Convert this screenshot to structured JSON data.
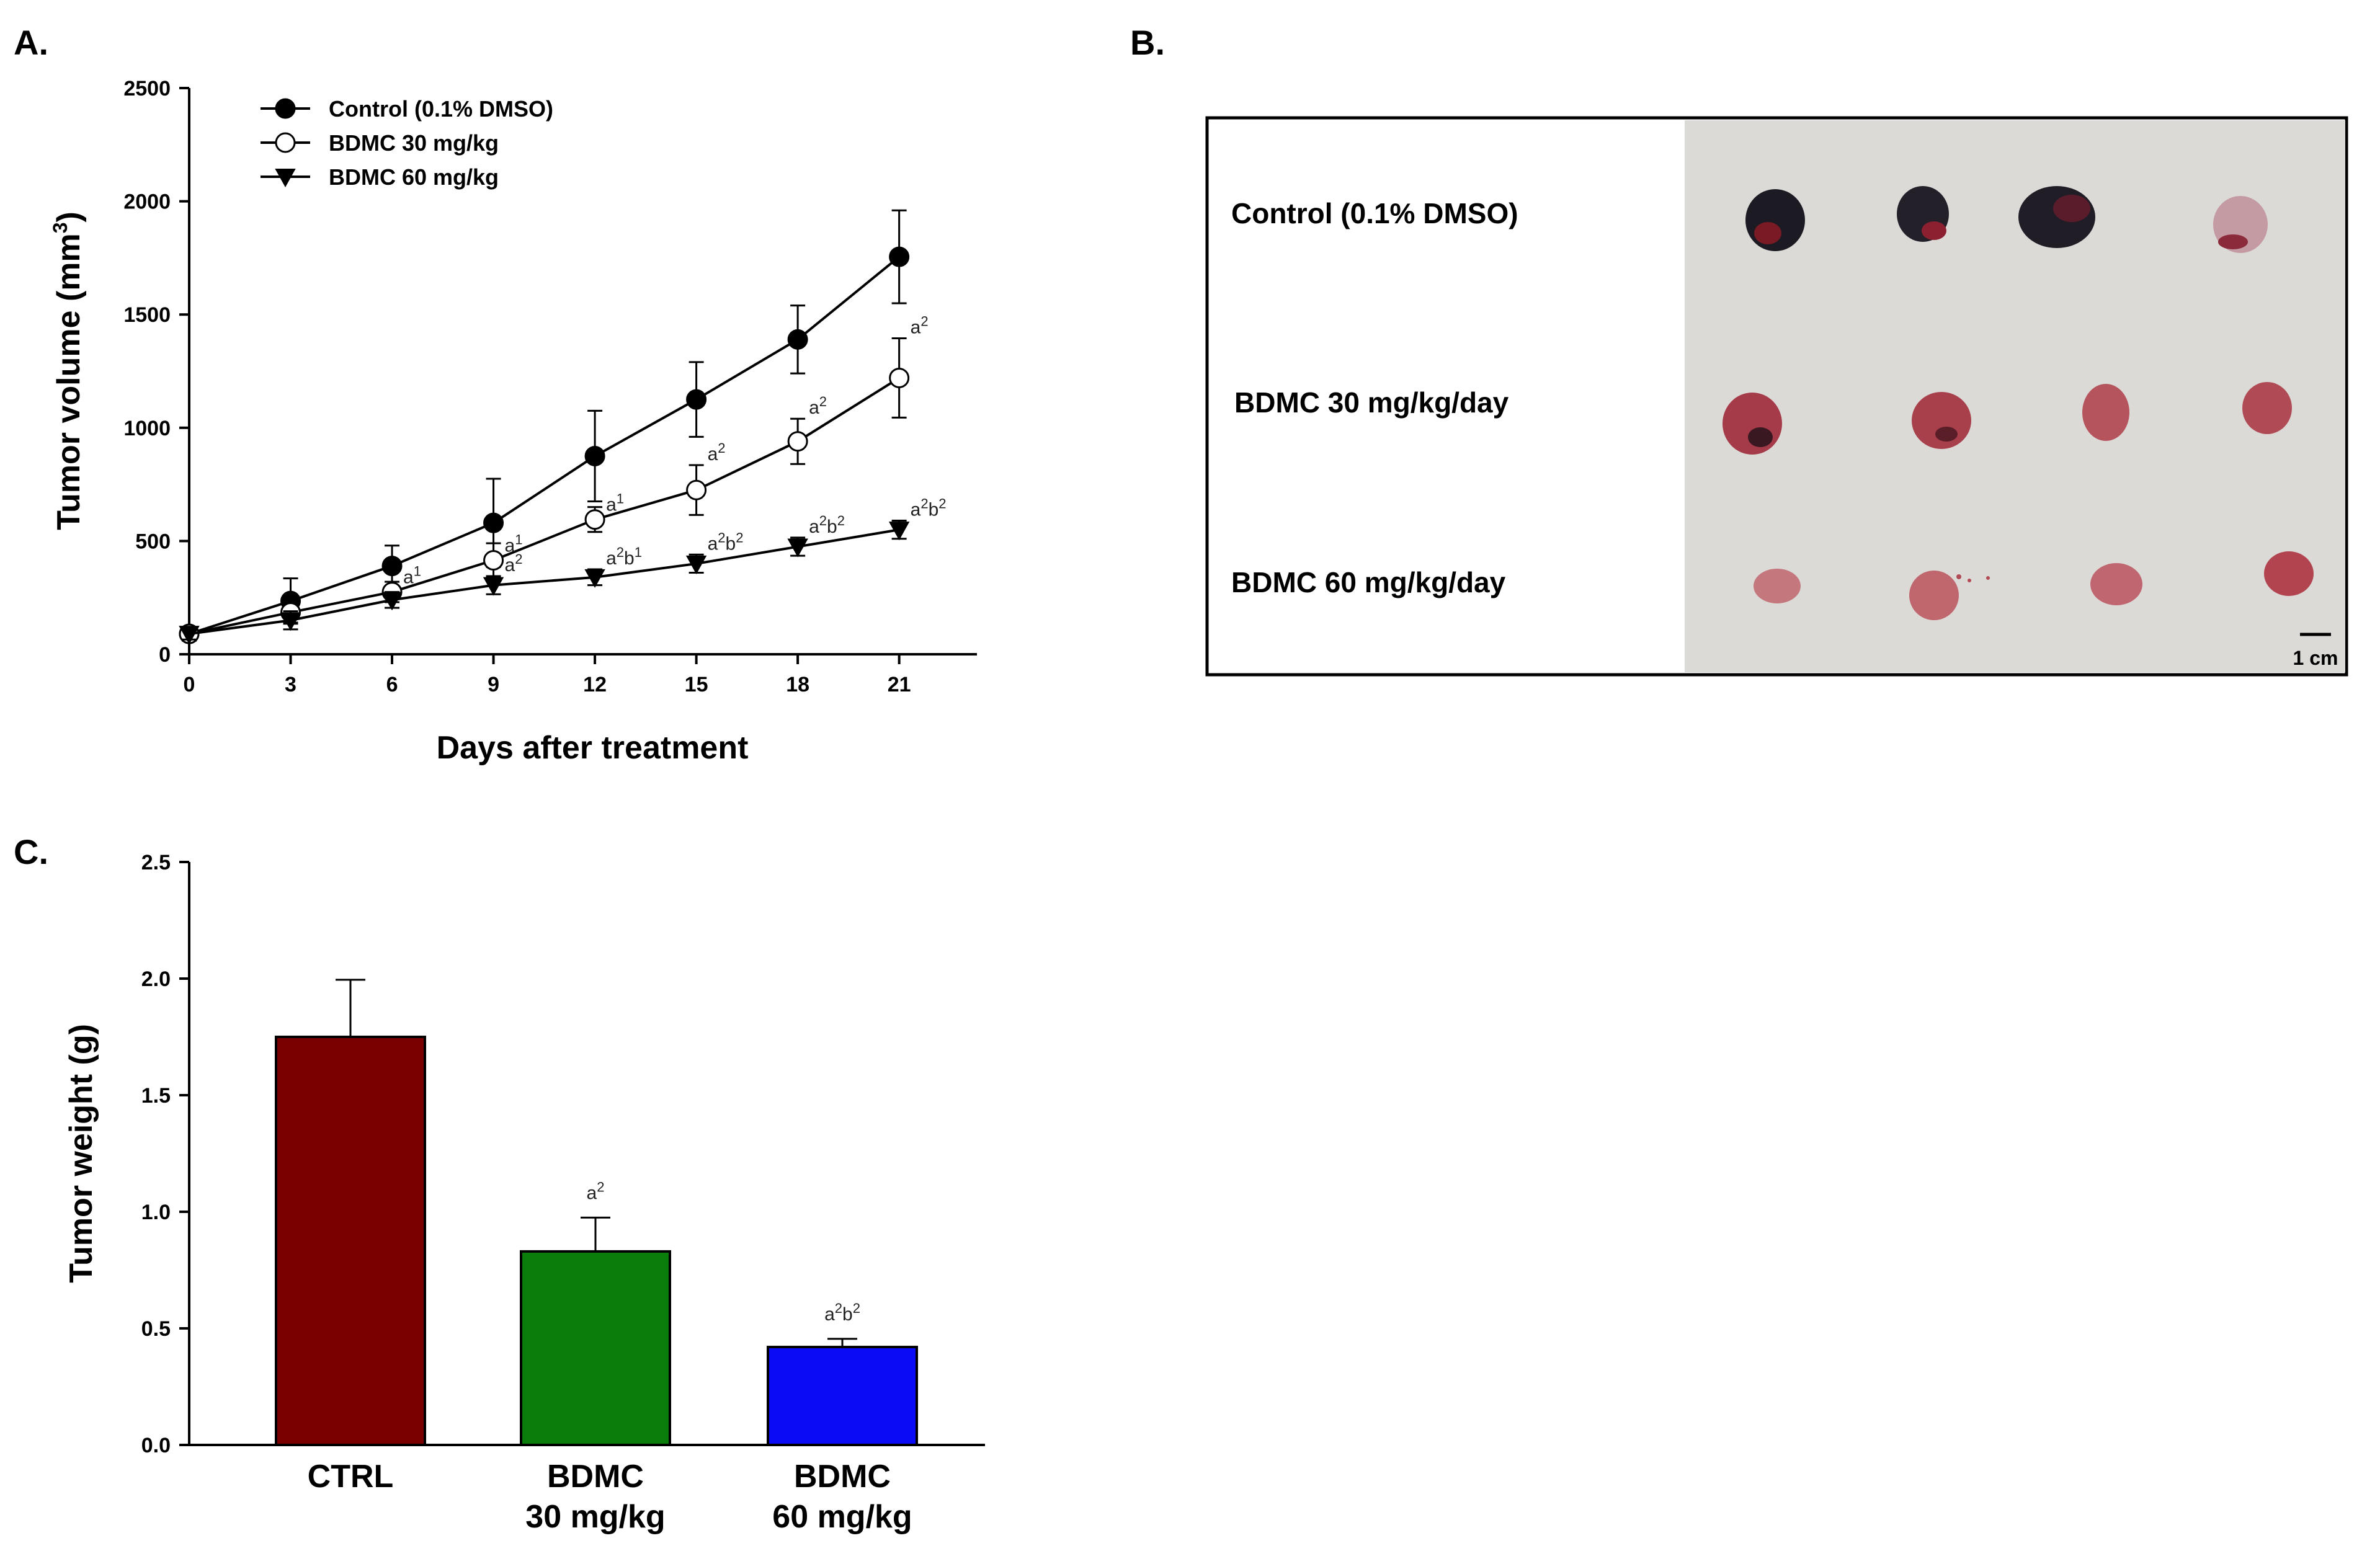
{
  "panel_labels": {
    "a": "A.",
    "b": "B.",
    "c": "C."
  },
  "colors": {
    "ctrl_bar": "#7a0000",
    "bdmc30_bar": "#0a7d0a",
    "bdmc60_bar": "#0b0bf5",
    "photo_background": "#dcdad7"
  },
  "chart_data": [
    {
      "type": "line",
      "panel": "A",
      "title": "",
      "xlabel": "Days after treatment",
      "ylabel": "Tumor volume (mm³)",
      "x": [
        0,
        3,
        6,
        9,
        12,
        15,
        18,
        21
      ],
      "xticks": [
        "0",
        "3",
        "6",
        "9",
        "12",
        "15",
        "18",
        "21"
      ],
      "yticks": [
        "0",
        "500",
        "1000",
        "1500",
        "2000",
        "2500"
      ],
      "xlim": [
        0,
        23.3
      ],
      "ylim": [
        0,
        2500
      ],
      "grid": false,
      "legend_position": "top-left",
      "series": [
        {
          "name": "Control (0.1% DMSO)",
          "marker": "filled-circle",
          "values": [
            90,
            235,
            390,
            580,
            875,
            1125,
            1390,
            1755
          ],
          "errors": [
            30,
            100,
            90,
            195,
            200,
            165,
            150,
            205
          ],
          "annotations": [
            "",
            "",
            "",
            "",
            "",
            "",
            "",
            ""
          ]
        },
        {
          "name": "BDMC 30 mg/kg",
          "marker": "open-circle",
          "values": [
            90,
            185,
            275,
            415,
            595,
            725,
            940,
            1220
          ],
          "errors": [
            25,
            45,
            45,
            75,
            55,
            110,
            100,
            175
          ],
          "annotations": [
            "",
            "",
            "a¹",
            "a¹",
            "a¹",
            "a²",
            "a²",
            "a²"
          ]
        },
        {
          "name": "BDMC 60 mg/kg",
          "marker": "filled-triangle-down",
          "values": [
            90,
            150,
            240,
            305,
            340,
            400,
            475,
            550
          ],
          "errors": [
            25,
            40,
            35,
            40,
            35,
            40,
            40,
            40
          ],
          "annotations": [
            "",
            "",
            "",
            "a²",
            "a²b¹",
            "a²b²",
            "a²b²",
            "a²b²"
          ]
        }
      ]
    },
    {
      "type": "bar",
      "panel": "C",
      "title": "",
      "xlabel": "",
      "ylabel": "Tumor weight (g)",
      "categories": [
        "CTRL",
        "BDMC\n30 mg/kg",
        "BDMC\n60 mg/kg"
      ],
      "values": [
        1.75,
        0.83,
        0.42
      ],
      "errors": [
        0.245,
        0.145,
        0.035
      ],
      "annotations": [
        "",
        "a²",
        "a²b²"
      ],
      "yticks": [
        "0.0",
        "0.5",
        "1.0",
        "1.5",
        "2.0",
        "2.5"
      ],
      "ylim": [
        0,
        2.5
      ],
      "grid": false
    }
  ],
  "photo": {
    "rows": [
      {
        "label": "Control (0.1% DMSO)"
      },
      {
        "label": "BDMC 30 mg/kg/day"
      },
      {
        "label": "BDMC 60 mg/kg/day"
      }
    ],
    "scale_bar_label": "1 cm"
  }
}
